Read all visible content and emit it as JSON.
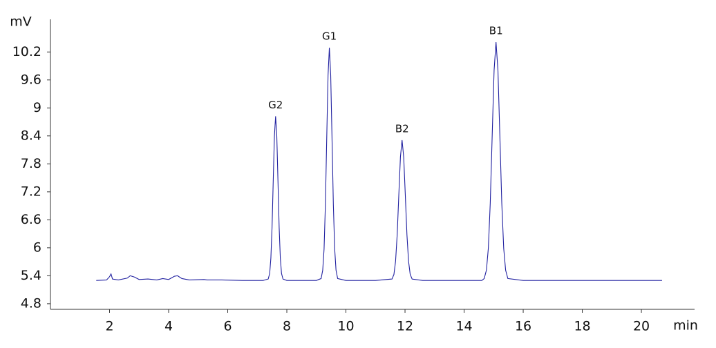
{
  "chart_data": {
    "type": "line",
    "y_label": "mV",
    "x_label": "min",
    "color": "#2020a0",
    "grid": false,
    "xlim": [
      0,
      21.8
    ],
    "ylim": [
      4.68,
      10.9
    ],
    "xticks": [
      2,
      4,
      6,
      8,
      10,
      12,
      14,
      16,
      18,
      20
    ],
    "yticks": [
      4.8,
      5.4,
      6,
      6.6,
      7.2,
      7.8,
      8.4,
      9,
      9.6,
      10.2
    ],
    "x": [
      1.55,
      1.9,
      2.0,
      2.05,
      2.1,
      2.3,
      2.6,
      2.7,
      2.85,
      3.0,
      3.3,
      3.6,
      3.8,
      4.0,
      4.2,
      4.3,
      4.45,
      4.7,
      5.2,
      5.3,
      5.8,
      6.5,
      7.2,
      7.37,
      7.42,
      7.46,
      7.5,
      7.54,
      7.58,
      7.62,
      7.66,
      7.7,
      7.74,
      7.78,
      7.82,
      7.87,
      8.0,
      8.5,
      9.0,
      9.16,
      9.215,
      9.26,
      9.305,
      9.35,
      9.395,
      9.44,
      9.485,
      9.53,
      9.575,
      9.62,
      9.665,
      9.72,
      10.0,
      11.0,
      11.56,
      11.625,
      11.68,
      11.735,
      11.79,
      11.845,
      11.9,
      11.955,
      12.01,
      12.065,
      12.12,
      12.175,
      12.24,
      12.6,
      14.0,
      14.6,
      14.68,
      14.755,
      14.82,
      14.885,
      14.95,
      15.015,
      15.08,
      15.145,
      15.21,
      15.275,
      15.34,
      15.405,
      15.48,
      16.0,
      18.0,
      20.7
    ],
    "values": [
      5.3,
      5.31,
      5.38,
      5.44,
      5.33,
      5.31,
      5.35,
      5.4,
      5.37,
      5.32,
      5.33,
      5.31,
      5.34,
      5.32,
      5.39,
      5.4,
      5.34,
      5.31,
      5.32,
      5.31,
      5.31,
      5.3,
      5.3,
      5.33,
      5.45,
      5.78,
      6.44,
      7.44,
      8.4,
      8.82,
      8.4,
      7.44,
      6.44,
      5.78,
      5.45,
      5.33,
      5.3,
      5.3,
      5.3,
      5.34,
      5.52,
      5.97,
      6.92,
      8.33,
      9.7,
      10.29,
      9.7,
      8.33,
      6.92,
      5.97,
      5.52,
      5.34,
      5.3,
      5.3,
      5.33,
      5.43,
      5.71,
      6.28,
      7.13,
      7.95,
      8.31,
      7.95,
      7.13,
      6.28,
      5.71,
      5.43,
      5.33,
      5.3,
      5.3,
      5.3,
      5.34,
      5.52,
      5.99,
      6.96,
      8.4,
      9.81,
      10.41,
      9.81,
      8.4,
      6.96,
      5.99,
      5.52,
      5.34,
      5.3,
      5.3,
      5.3
    ],
    "annotations": [
      {
        "text": "G2",
        "x": 7.62,
        "y": 8.82
      },
      {
        "text": "G1",
        "x": 9.44,
        "y": 10.29
      },
      {
        "text": "B2",
        "x": 11.9,
        "y": 8.31
      },
      {
        "text": "B1",
        "x": 15.08,
        "y": 10.41
      }
    ]
  }
}
